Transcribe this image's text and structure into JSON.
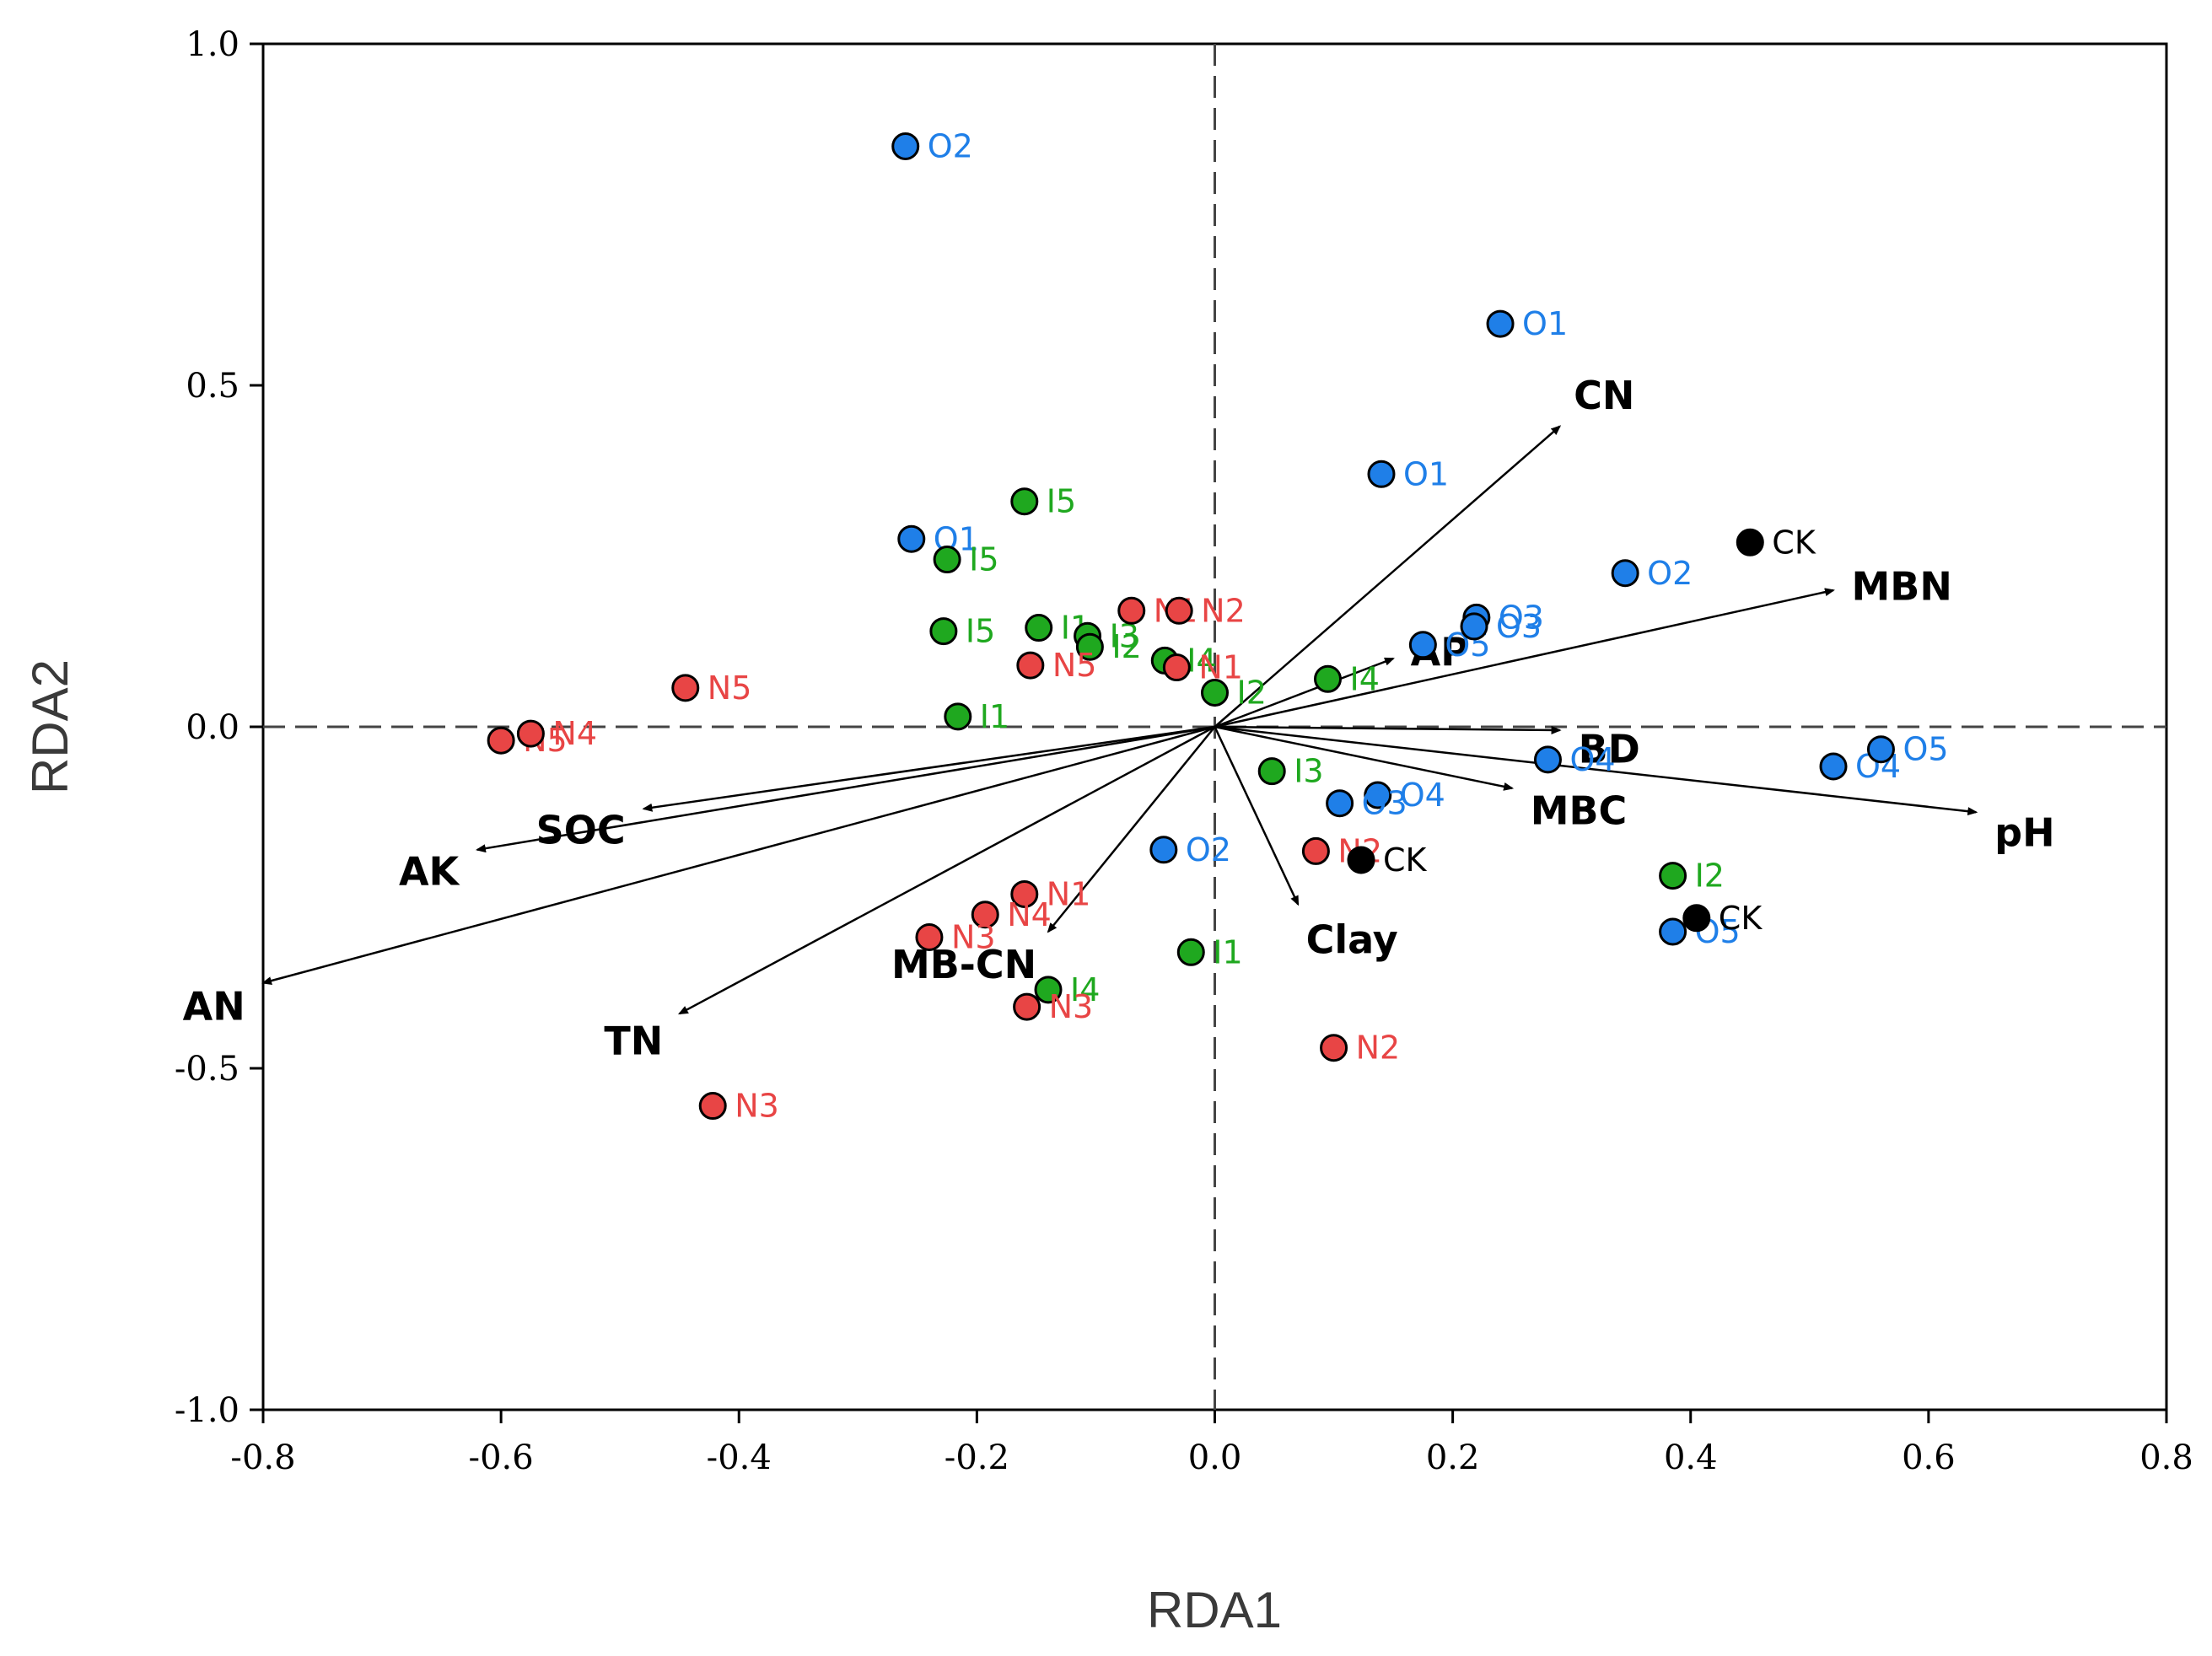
{
  "chart_data": {
    "type": "scatter",
    "title": "",
    "xlabel": "RDA1",
    "ylabel": "RDA2",
    "xlim": [
      -0.8,
      0.8
    ],
    "ylim": [
      -1.0,
      1.0
    ],
    "x_ticks": [
      "-0.8",
      "-0.6",
      "-0.4",
      "-0.2",
      "0.0",
      "0.2",
      "0.4",
      "0.6",
      "0.8"
    ],
    "y_ticks": [
      "-1.0",
      "-0.5",
      "0.0",
      "0.5",
      "1.0"
    ],
    "grid": false,
    "reference_lines": [
      "x=0 dashed",
      "y=0 dashed"
    ],
    "colors": {
      "O": "#1f7fe8",
      "I": "#1fa81f",
      "N": "#e84545",
      "CK": "#000000"
    },
    "arrows": [
      {
        "label": "CN",
        "x": 0.29,
        "y": 0.44
      },
      {
        "label": "MBN",
        "x": 0.52,
        "y": 0.2
      },
      {
        "label": "AP",
        "x": 0.15,
        "y": 0.1
      },
      {
        "label": "BD",
        "x": 0.29,
        "y": -0.005
      },
      {
        "label": "pH",
        "x": 0.64,
        "y": -0.125
      },
      {
        "label": "MBC",
        "x": 0.25,
        "y": -0.09
      },
      {
        "label": "Clay",
        "x": 0.07,
        "y": -0.26
      },
      {
        "label": "MB-CN",
        "x": -0.14,
        "y": -0.3
      },
      {
        "label": "TN",
        "x": -0.45,
        "y": -0.42
      },
      {
        "label": "AN",
        "x": -0.8,
        "y": -0.375
      },
      {
        "label": "AK",
        "x": -0.62,
        "y": -0.18
      },
      {
        "label": "SOC",
        "x": -0.48,
        "y": -0.12
      }
    ],
    "series": [
      {
        "group": "O",
        "points": [
          {
            "label": "O2",
            "x": -0.26,
            "y": 0.85
          },
          {
            "label": "O1",
            "x": 0.24,
            "y": 0.59
          },
          {
            "label": "O1",
            "x": 0.14,
            "y": 0.37
          },
          {
            "label": "O1",
            "x": -0.255,
            "y": 0.275
          },
          {
            "label": "O2",
            "x": 0.345,
            "y": 0.225
          },
          {
            "label": "O5",
            "x": 0.175,
            "y": 0.12
          },
          {
            "label": "O3",
            "x": 0.22,
            "y": 0.16
          },
          {
            "label": "O3",
            "x": 0.218,
            "y": 0.147
          },
          {
            "label": "O4",
            "x": 0.28,
            "y": -0.048
          },
          {
            "label": "O4",
            "x": 0.52,
            "y": -0.058
          },
          {
            "label": "O5",
            "x": 0.56,
            "y": -0.033
          },
          {
            "label": "O4",
            "x": 0.137,
            "y": -0.1
          },
          {
            "label": "O3",
            "x": 0.105,
            "y": -0.112
          },
          {
            "label": "O2",
            "x": -0.043,
            "y": -0.18
          },
          {
            "label": "O5",
            "x": 0.385,
            "y": -0.3
          }
        ]
      },
      {
        "group": "I",
        "points": [
          {
            "label": "I5",
            "x": -0.16,
            "y": 0.33
          },
          {
            "label": "I5",
            "x": -0.225,
            "y": 0.245
          },
          {
            "label": "I5",
            "x": -0.228,
            "y": 0.14
          },
          {
            "label": "I1",
            "x": -0.148,
            "y": 0.145
          },
          {
            "label": "I3",
            "x": -0.107,
            "y": 0.133
          },
          {
            "label": "I2",
            "x": -0.105,
            "y": 0.117
          },
          {
            "label": "I4",
            "x": -0.042,
            "y": 0.097
          },
          {
            "label": "I2",
            "x": 0.0,
            "y": 0.05
          },
          {
            "label": "I4",
            "x": 0.095,
            "y": 0.07
          },
          {
            "label": "I1",
            "x": -0.216,
            "y": 0.015
          },
          {
            "label": "I3",
            "x": 0.048,
            "y": -0.065
          },
          {
            "label": "I2",
            "x": 0.385,
            "y": -0.218
          },
          {
            "label": "I1",
            "x": -0.02,
            "y": -0.33
          },
          {
            "label": "I4",
            "x": -0.14,
            "y": -0.385
          }
        ]
      },
      {
        "group": "N",
        "points": [
          {
            "label": "N1",
            "x": -0.07,
            "y": 0.17
          },
          {
            "label": "N2",
            "x": -0.03,
            "y": 0.17
          },
          {
            "label": "N5",
            "x": -0.155,
            "y": 0.09
          },
          {
            "label": "N1",
            "x": -0.032,
            "y": 0.087
          },
          {
            "label": "N5",
            "x": -0.445,
            "y": 0.057
          },
          {
            "label": "N5",
            "x": -0.6,
            "y": -0.02
          },
          {
            "label": "N4",
            "x": -0.575,
            "y": -0.01
          },
          {
            "label": "N2",
            "x": 0.085,
            "y": -0.182
          },
          {
            "label": "N1",
            "x": -0.16,
            "y": -0.245
          },
          {
            "label": "N4",
            "x": -0.193,
            "y": -0.275
          },
          {
            "label": "N3",
            "x": -0.24,
            "y": -0.308
          },
          {
            "label": "N3",
            "x": -0.158,
            "y": -0.41
          },
          {
            "label": "N2",
            "x": 0.1,
            "y": -0.47
          },
          {
            "label": "N3",
            "x": -0.422,
            "y": -0.555
          }
        ]
      },
      {
        "group": "CK",
        "points": [
          {
            "label": "CK",
            "x": 0.45,
            "y": 0.27
          },
          {
            "label": "CK",
            "x": 0.123,
            "y": -0.195
          },
          {
            "label": "CK",
            "x": 0.405,
            "y": -0.28
          }
        ]
      }
    ]
  }
}
